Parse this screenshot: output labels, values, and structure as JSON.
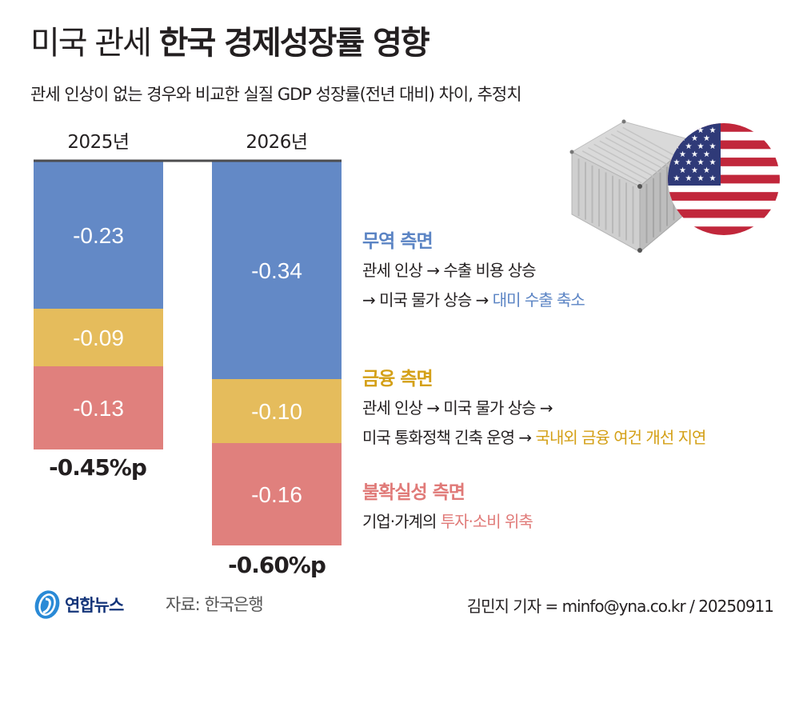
{
  "header": {
    "title_light": "미국 관세",
    "title_bold": "한국 경제성장률 영향",
    "subtitle": "관세 인상이 없는 경우와 비교한 실질 GDP 성장률(전년 대비) 차이, 추정치"
  },
  "colors": {
    "trade": "#6389c6",
    "finance": "#e5bc5c",
    "uncertainty": "#e0807d",
    "trade_text": "#5b84c4",
    "finance_text": "#d4a017",
    "uncertainty_text": "#e07a78",
    "baseline": "#4d4d4f"
  },
  "chart_data": {
    "type": "bar",
    "stacked": true,
    "title": "미국 관세 한국 경제성장률 영향",
    "subtitle": "관세 인상이 없는 경우와 비교한 실질 GDP 성장률(전년 대비) 차이, 추정치",
    "unit": "%p",
    "categories": [
      "2025년",
      "2026년"
    ],
    "series": [
      {
        "name": "무역 측면",
        "key": "trade",
        "values": [
          -0.23,
          -0.34
        ],
        "labels": [
          "-0.23",
          "-0.34"
        ]
      },
      {
        "name": "금융 측면",
        "key": "finance",
        "values": [
          -0.09,
          -0.1
        ],
        "labels": [
          "-0.09",
          "-0.10"
        ]
      },
      {
        "name": "불확실성 측면",
        "key": "uncertainty",
        "values": [
          -0.13,
          -0.16
        ],
        "labels": [
          "-0.13",
          "-0.16"
        ]
      }
    ],
    "totals": [
      -0.45,
      -0.6
    ],
    "total_labels": [
      "-0.45%p",
      "-0.60%p"
    ],
    "ylim": [
      -0.6,
      0
    ],
    "grid": false,
    "legend": "right"
  },
  "annotations": {
    "trade": {
      "title": "무역 측면",
      "line1": "관세 인상 → 수출 비용 상승",
      "line2_plain": "→ 미국 물가 상승 → ",
      "line2_hl": "대미 수출 축소"
    },
    "finance": {
      "title": "금융 측면",
      "line1": "관세 인상 → 미국 물가 상승 →",
      "line2_plain": "미국 통화정책 긴축 운영 → ",
      "line2_hl": "국내외 금융 여건 개선 지연"
    },
    "uncertainty": {
      "title": "불확실성 측면",
      "line1_plain": "기업·가계의 ",
      "line1_hl": "투자·소비 위축"
    }
  },
  "illustration": {
    "container_icon": "shipping-container-icon",
    "flag_icon": "us-flag-icon"
  },
  "footer": {
    "logo_text": "연합뉴스",
    "source": "자료: 한국은행",
    "credit": "김민지 기자 = minfo@yna.co.kr / 20250911"
  }
}
